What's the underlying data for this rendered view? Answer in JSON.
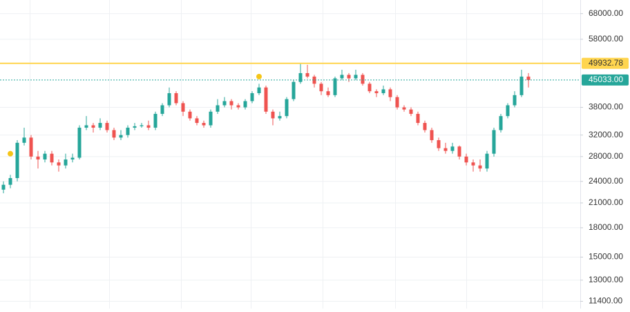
{
  "chart_data": {
    "type": "candlestick",
    "log_scale": true,
    "grid": true,
    "ylim": [
      10900,
      74000
    ],
    "yticks": [
      {
        "value": 68000,
        "label": "68000.00"
      },
      {
        "value": 58000,
        "label": "58000.00"
      },
      {
        "value": 38000,
        "label": "38000.00"
      },
      {
        "value": 32000,
        "label": "32000.00"
      },
      {
        "value": 28000,
        "label": "28000.00"
      },
      {
        "value": 24000,
        "label": "24000.00"
      },
      {
        "value": 21000,
        "label": "21000.00"
      },
      {
        "value": 18000,
        "label": "18000.00"
      },
      {
        "value": 15000,
        "label": "15000.00"
      },
      {
        "value": 13000,
        "label": "13000.00"
      },
      {
        "value": 11400,
        "label": "11400.00"
      }
    ],
    "up_color": "#26a69a",
    "down_color": "#ef5350",
    "open": [
      22800,
      23500,
      24500,
      30500,
      31500,
      28000,
      27500,
      28500,
      27000,
      26500,
      27500,
      27800,
      33500,
      34000,
      33500,
      34500,
      33000,
      31500,
      32000,
      33500,
      33800,
      34000,
      33500,
      36500,
      38500,
      41500,
      39000,
      37000,
      35500,
      34500,
      34000,
      37000,
      38500,
      39500,
      38500,
      38000,
      39500,
      41500,
      43000,
      37000,
      35500,
      36000,
      40000,
      44500,
      47000,
      46000,
      44000,
      42000,
      41000,
      45500,
      46500,
      45500,
      46500,
      44000,
      42000,
      41500,
      42500,
      40500,
      38000,
      37500,
      36500,
      34500,
      33000,
      31000,
      29500,
      29000,
      29800,
      28000,
      27000,
      26500,
      26000,
      28500,
      33000,
      36000,
      38500,
      41000,
      46000
    ],
    "high": [
      24000,
      25000,
      31000,
      33500,
      32000,
      29000,
      29000,
      29000,
      27500,
      28500,
      28500,
      34000,
      36000,
      34500,
      35500,
      35000,
      33500,
      33000,
      34000,
      34500,
      34500,
      35000,
      37000,
      39000,
      43000,
      42000,
      39500,
      37500,
      36000,
      35000,
      37500,
      40000,
      40500,
      40000,
      39000,
      40000,
      42000,
      44000,
      43500,
      37500,
      37000,
      40500,
      45000,
      50000,
      49500,
      46500,
      44500,
      43000,
      46000,
      48000,
      47000,
      48000,
      47000,
      44500,
      42500,
      43500,
      43000,
      41000,
      38500,
      38000,
      37000,
      35000,
      33500,
      31500,
      30500,
      30500,
      30000,
      28500,
      27500,
      27500,
      29000,
      33500,
      36500,
      39000,
      42000,
      48000,
      47000
    ],
    "low": [
      22300,
      23000,
      24000,
      30000,
      27500,
      26000,
      27000,
      26500,
      25500,
      26000,
      27000,
      27500,
      33000,
      32500,
      33000,
      32500,
      31000,
      31000,
      31500,
      33000,
      33500,
      33000,
      33000,
      36000,
      38000,
      38500,
      36000,
      35000,
      34000,
      33500,
      33500,
      36500,
      38000,
      37500,
      37500,
      37500,
      39000,
      41000,
      36500,
      34000,
      35000,
      35500,
      39500,
      44000,
      45500,
      43000,
      41000,
      40500,
      40500,
      45000,
      44500,
      45000,
      43500,
      41500,
      40500,
      41000,
      39500,
      37500,
      37000,
      36000,
      34000,
      32500,
      30500,
      29000,
      28500,
      28500,
      27500,
      26500,
      25500,
      25500,
      25500,
      28000,
      32500,
      35500,
      38000,
      40500,
      43000
    ],
    "close": [
      23500,
      24500,
      30500,
      31500,
      28000,
      27500,
      28500,
      27000,
      26500,
      27500,
      27800,
      33500,
      34000,
      33500,
      34500,
      33000,
      31500,
      32000,
      33500,
      33800,
      34000,
      33500,
      36500,
      38500,
      41500,
      39000,
      37000,
      35500,
      34500,
      34000,
      37000,
      38500,
      39500,
      38500,
      38000,
      39500,
      41500,
      43000,
      37000,
      35500,
      36000,
      40000,
      44500,
      47000,
      46000,
      44000,
      42000,
      41000,
      45500,
      46500,
      45500,
      46500,
      44000,
      42000,
      41500,
      42500,
      40500,
      38000,
      37500,
      36500,
      34500,
      33000,
      31000,
      29500,
      29000,
      29800,
      28000,
      27000,
      26500,
      26000,
      28500,
      33000,
      36000,
      38500,
      41000,
      46000,
      45033
    ],
    "price_lines": [
      {
        "value": 49932.78,
        "label": "49932.78",
        "color": "#ffd54f",
        "text_color": "#333333",
        "style": "solid"
      },
      {
        "value": 45033,
        "label": "45033.00",
        "color": "#26a69a",
        "text_color": "#ffffff",
        "style": "dotted"
      }
    ],
    "markers": [
      {
        "index": 1,
        "value": 28500
      },
      {
        "index": 37,
        "value": 46000
      }
    ],
    "marker_color": "#f5c518"
  }
}
